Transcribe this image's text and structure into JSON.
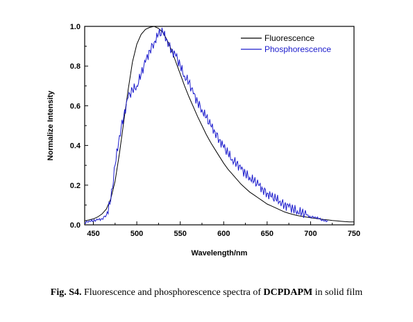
{
  "chart_data": {
    "type": "line",
    "xlabel": "Wavelength/nm",
    "ylabel": "Normalize Intensity",
    "xlim": [
      440,
      750
    ],
    "ylim": [
      0,
      1.0
    ],
    "x_ticks": [
      450,
      500,
      550,
      600,
      650,
      700,
      750
    ],
    "y_ticks": [
      0.0,
      0.2,
      0.4,
      0.6,
      0.8,
      1.0
    ],
    "legend_position": "top-right",
    "grid": false,
    "series": [
      {
        "name": "Fluorescence",
        "color": "#000000",
        "x": [
          440,
          445,
          450,
          455,
          460,
          465,
          470,
          475,
          480,
          485,
          490,
          495,
          500,
          505,
          510,
          515,
          520,
          525,
          530,
          535,
          540,
          545,
          550,
          555,
          560,
          565,
          570,
          575,
          580,
          585,
          590,
          595,
          600,
          605,
          610,
          615,
          620,
          625,
          630,
          635,
          640,
          645,
          650,
          655,
          660,
          665,
          670,
          675,
          680,
          685,
          690,
          695,
          700,
          705,
          710,
          715,
          720,
          725,
          730,
          735,
          740,
          745,
          750
        ],
        "values": [
          0.02,
          0.025,
          0.03,
          0.04,
          0.055,
          0.08,
          0.13,
          0.22,
          0.36,
          0.52,
          0.68,
          0.82,
          0.91,
          0.96,
          0.985,
          0.995,
          1.0,
          0.99,
          0.97,
          0.93,
          0.88,
          0.82,
          0.76,
          0.7,
          0.645,
          0.595,
          0.545,
          0.5,
          0.455,
          0.415,
          0.38,
          0.345,
          0.31,
          0.28,
          0.255,
          0.23,
          0.205,
          0.185,
          0.165,
          0.15,
          0.135,
          0.12,
          0.105,
          0.095,
          0.085,
          0.075,
          0.065,
          0.058,
          0.052,
          0.047,
          0.043,
          0.039,
          0.036,
          0.033,
          0.03,
          0.027,
          0.025,
          0.022,
          0.02,
          0.018,
          0.016,
          0.015,
          0.015
        ]
      },
      {
        "name": "Phosphorescence",
        "color": "#1a1acc",
        "x": [
          440,
          445,
          450,
          455,
          460,
          465,
          470,
          475,
          480,
          485,
          490,
          495,
          500,
          505,
          510,
          515,
          520,
          525,
          530,
          535,
          540,
          545,
          550,
          555,
          560,
          565,
          570,
          575,
          580,
          585,
          590,
          595,
          600,
          605,
          610,
          615,
          620,
          625,
          630,
          635,
          640,
          645,
          650,
          655,
          660,
          665,
          670,
          675,
          680,
          685,
          690,
          695,
          700,
          705,
          710,
          715,
          720
        ],
        "values": [
          0.01,
          0.02,
          0.02,
          0.025,
          0.03,
          0.05,
          0.12,
          0.3,
          0.45,
          0.55,
          0.64,
          0.68,
          0.7,
          0.76,
          0.82,
          0.88,
          0.92,
          0.96,
          0.97,
          0.93,
          0.88,
          0.85,
          0.8,
          0.75,
          0.72,
          0.66,
          0.62,
          0.58,
          0.54,
          0.5,
          0.47,
          0.43,
          0.39,
          0.36,
          0.33,
          0.31,
          0.28,
          0.26,
          0.24,
          0.22,
          0.2,
          0.18,
          0.16,
          0.14,
          0.13,
          0.12,
          0.1,
          0.09,
          0.08,
          0.07,
          0.06,
          0.05,
          0.04,
          0.04,
          0.03,
          0.02,
          0.02
        ]
      }
    ]
  },
  "caption": {
    "label": "Fig. S4.",
    "text_before": " Fluorescence and phosphorescence spectra of ",
    "compound": "DCPDAPM",
    "text_after": " in solid film"
  }
}
